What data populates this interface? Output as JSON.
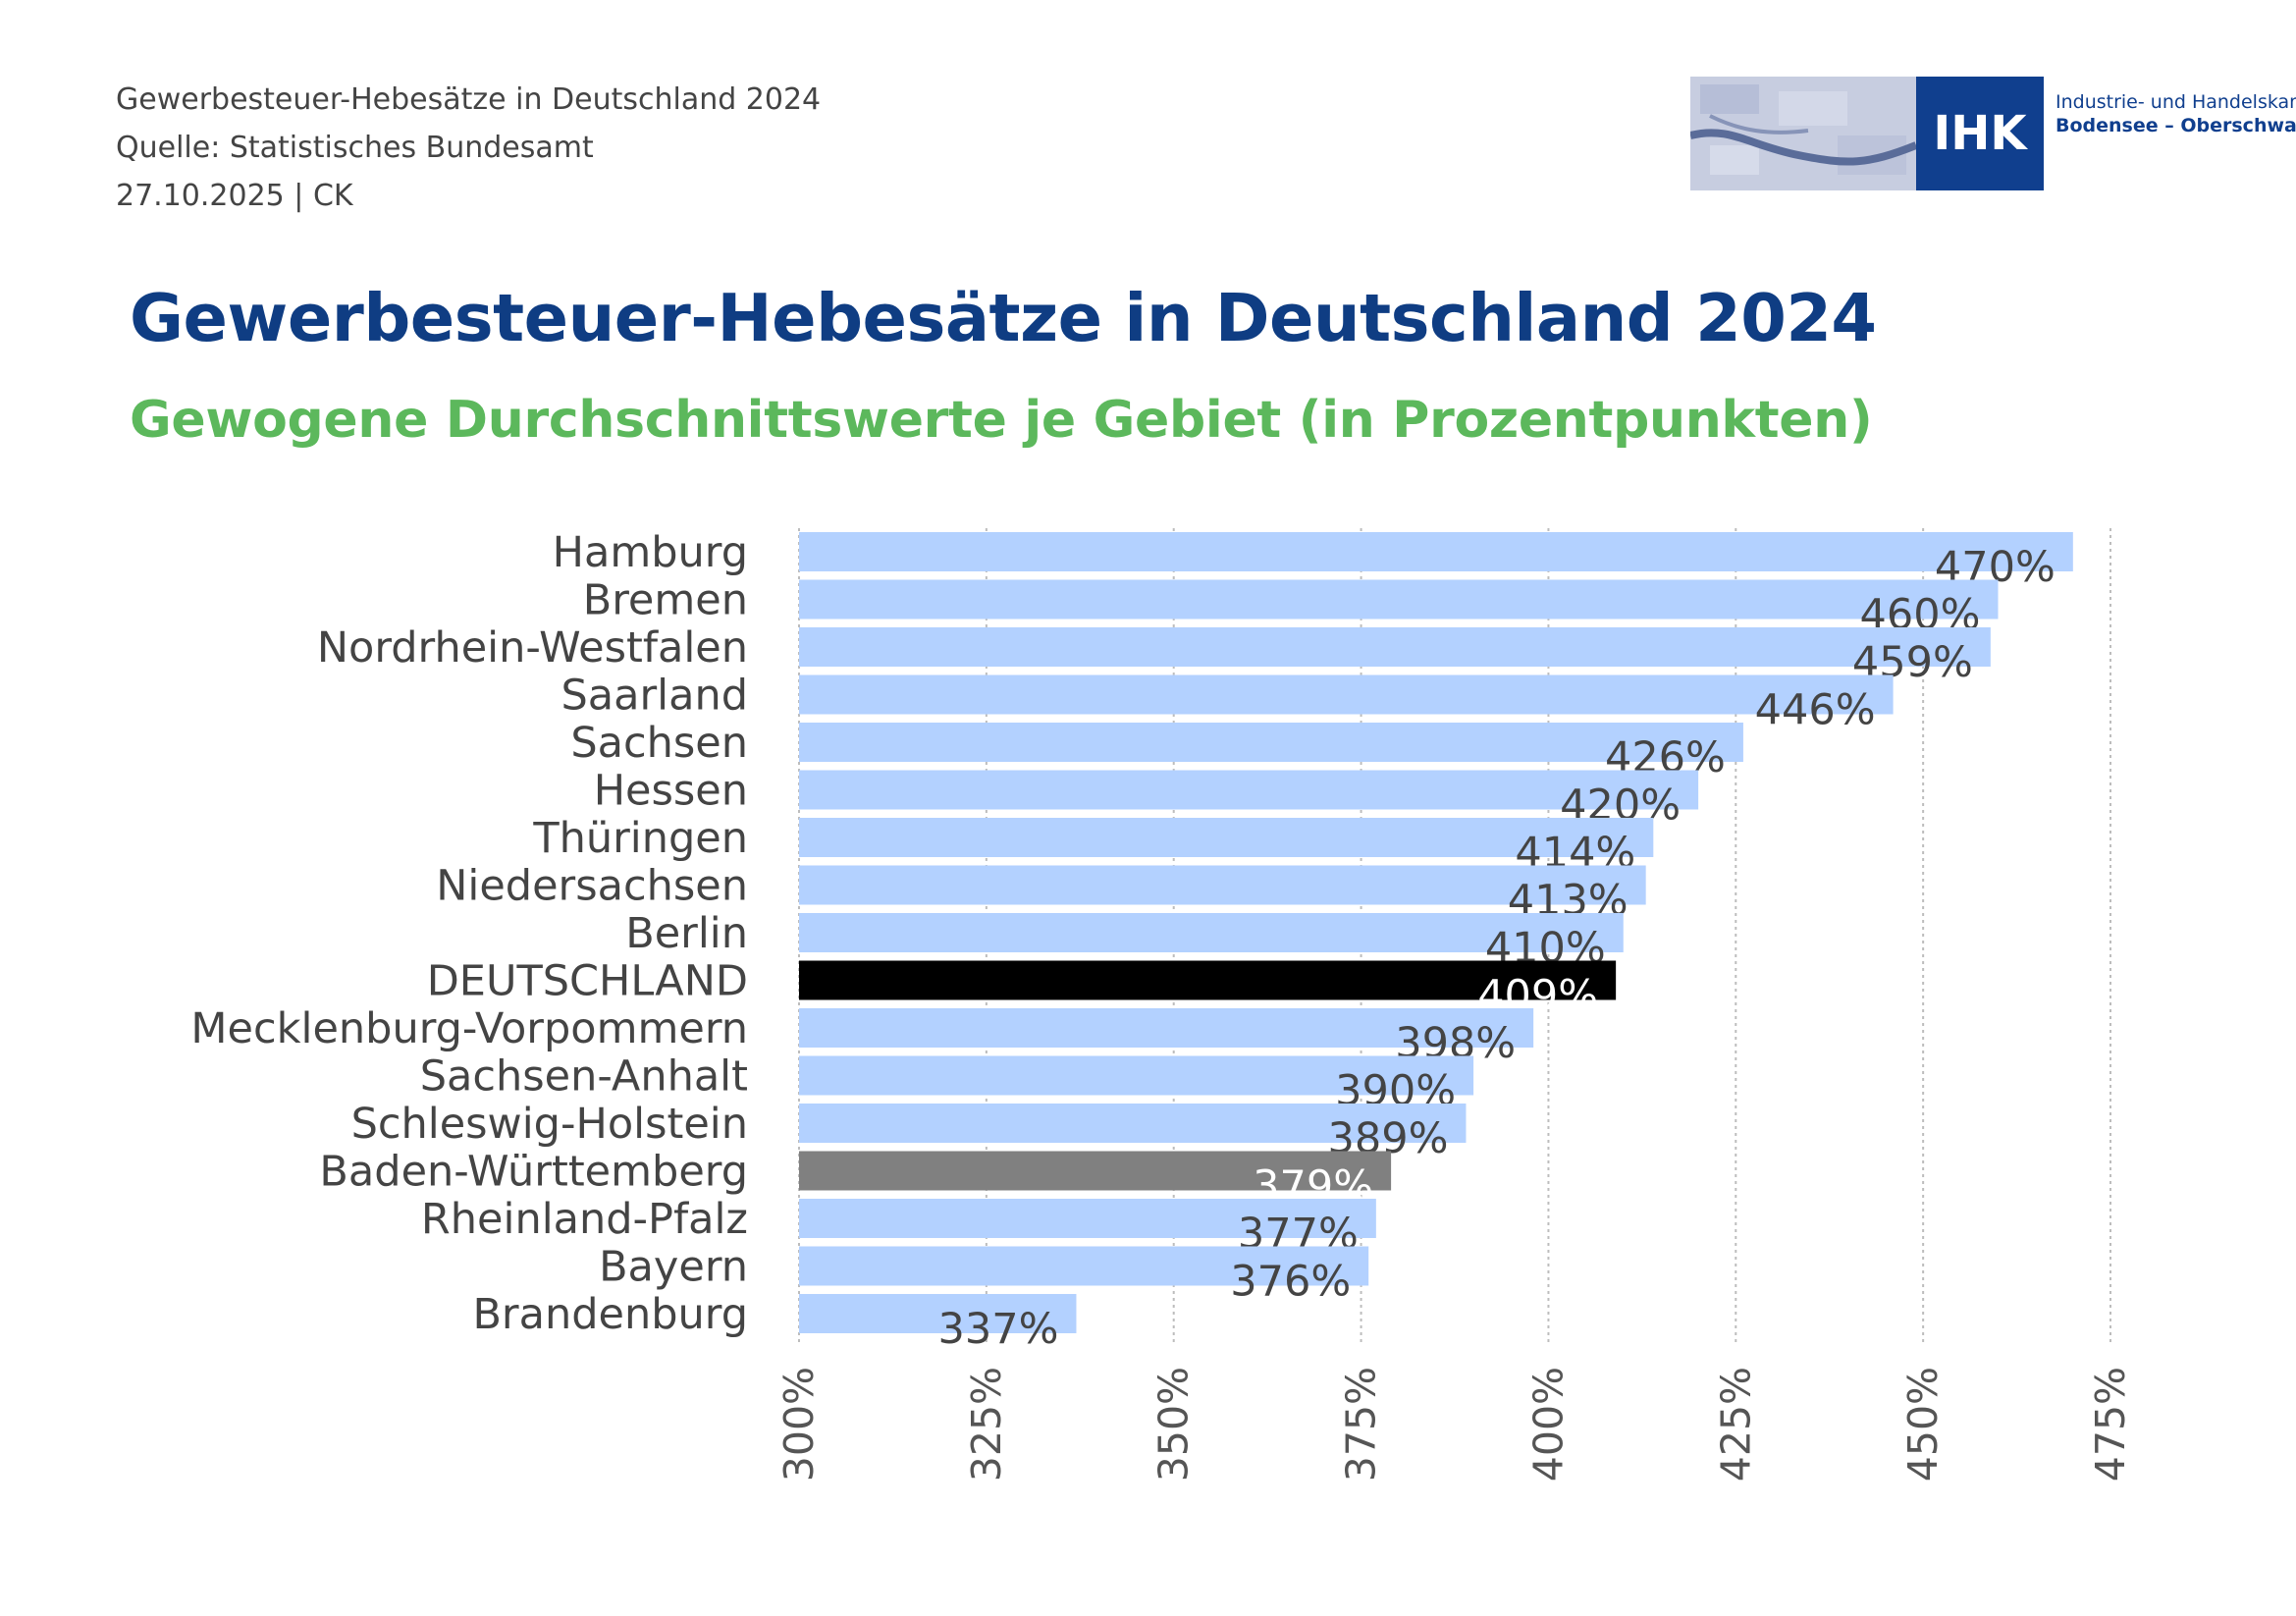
{
  "header": {
    "line1": "Gewerbesteuer-Hebesätze in Deutschland 2024",
    "line2": "Quelle: Statistisches Bundesamt",
    "line3": "27.10.2025 | CK"
  },
  "logo": {
    "mark": "IHK",
    "line1": "Industrie- und Handelskammer",
    "line2": "Bodensee – Oberschwaben",
    "color": "#103f8e"
  },
  "chart_data": {
    "type": "bar",
    "orientation": "horizontal",
    "title": "Gewerbesteuer-Hebesätze in Deutschland 2024",
    "subtitle": "Gewogene Durchschnittswerte je Gebiet (in Prozentpunkten)",
    "categories": [
      "Hamburg",
      "Bremen",
      "Nordrhein-Westfalen",
      "Saarland",
      "Sachsen",
      "Hessen",
      "Thüringen",
      "Niedersachsen",
      "Berlin",
      "DEUTSCHLAND",
      "Mecklenburg-Vorpommern",
      "Sachsen-Anhalt",
      "Schleswig-Holstein",
      "Baden-Württemberg",
      "Rheinland-Pfalz",
      "Bayern",
      "Brandenburg"
    ],
    "values": [
      470,
      460,
      459,
      446,
      426,
      420,
      414,
      413,
      410,
      409,
      398,
      390,
      389,
      379,
      377,
      376,
      337
    ],
    "value_labels": [
      "470%",
      "460%",
      "459%",
      "446%",
      "426%",
      "420%",
      "414%",
      "413%",
      "410%",
      "409%",
      "398%",
      "390%",
      "389%",
      "379%",
      "377%",
      "376%",
      "337%"
    ],
    "xlim": [
      300,
      475
    ],
    "xticks": [
      300,
      325,
      350,
      375,
      400,
      425,
      450,
      475
    ],
    "xtick_labels": [
      "300%",
      "325%",
      "350%",
      "375%",
      "400%",
      "425%",
      "450%",
      "475%"
    ],
    "grid": "vertical dotted",
    "colors": {
      "default": "#b3d1ff",
      "DEUTSCHLAND": "#000000",
      "Baden-Württemberg": "#808080"
    }
  }
}
